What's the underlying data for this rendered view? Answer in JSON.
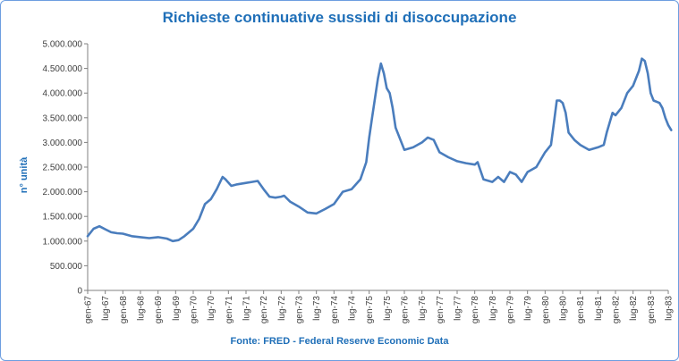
{
  "colors": {
    "line": "#4a7dbd",
    "title": "#1f6fb8",
    "axis": "#808080",
    "text": "#404040",
    "border": "#6d9ee0"
  },
  "chart_data": {
    "type": "line",
    "title": "Richieste continuative sussidi di disoccupazione",
    "ylabel": "n° unità",
    "xlabel": "",
    "source": "Fonte: FRED  - Federal Reserve Economic  Data",
    "ylim": [
      0,
      5000000
    ],
    "y_ticks": [
      "0",
      "500.000",
      "1.000.000",
      "1.500.000",
      "2.000.000",
      "2.500.000",
      "3.000.000",
      "3.500.000",
      "4.000.000",
      "4.500.000",
      "5.000.000"
    ],
    "x_ticks": [
      "gen-67",
      "lug-67",
      "gen-68",
      "lug-68",
      "gen-69",
      "lug-69",
      "gen-70",
      "lug-70",
      "gen-71",
      "lug-71",
      "gen-72",
      "lug-72",
      "gen-73",
      "lug-73",
      "gen-74",
      "lug-74",
      "gen-75",
      "lug-75",
      "gen-76",
      "lug-76",
      "gen-77",
      "lug-77",
      "gen-78",
      "lug-78",
      "gen-79",
      "lug-79",
      "gen-80",
      "lug-80",
      "gen-81",
      "lug-81",
      "gen-82",
      "lug-82",
      "gen-83",
      "lug-83"
    ],
    "grid": false,
    "legend": "none",
    "series": [
      {
        "points": [
          [
            "gen-67",
            1100000
          ],
          [
            "mar-67",
            1250000
          ],
          [
            "mag-67",
            1300000
          ],
          [
            "lug-67",
            1240000
          ],
          [
            "set-67",
            1180000
          ],
          [
            "nov-67",
            1160000
          ],
          [
            "gen-68",
            1150000
          ],
          [
            "apr-68",
            1100000
          ],
          [
            "lug-68",
            1080000
          ],
          [
            "ott-68",
            1060000
          ],
          [
            "gen-69",
            1080000
          ],
          [
            "apr-69",
            1050000
          ],
          [
            "giu-69",
            1000000
          ],
          [
            "ago-69",
            1020000
          ],
          [
            "ott-69",
            1100000
          ],
          [
            "gen-70",
            1250000
          ],
          [
            "mar-70",
            1450000
          ],
          [
            "mag-70",
            1750000
          ],
          [
            "lug-70",
            1850000
          ],
          [
            "set-70",
            2050000
          ],
          [
            "nov-70",
            2300000
          ],
          [
            "dic-70",
            2250000
          ],
          [
            "feb-71",
            2120000
          ],
          [
            "apr-71",
            2150000
          ],
          [
            "lug-71",
            2180000
          ],
          [
            "set-71",
            2200000
          ],
          [
            "nov-71",
            2220000
          ],
          [
            "gen-72",
            2050000
          ],
          [
            "mar-72",
            1900000
          ],
          [
            "mag-72",
            1880000
          ],
          [
            "lug-72",
            1900000
          ],
          [
            "ago-72",
            1920000
          ],
          [
            "ott-72",
            1800000
          ],
          [
            "gen-73",
            1700000
          ],
          [
            "apr-73",
            1580000
          ],
          [
            "lug-73",
            1560000
          ],
          [
            "ott-73",
            1650000
          ],
          [
            "gen-74",
            1750000
          ],
          [
            "apr-74",
            2000000
          ],
          [
            "lug-74",
            2050000
          ],
          [
            "ott-74",
            2250000
          ],
          [
            "dic-74",
            2600000
          ],
          [
            "gen-75",
            3100000
          ],
          [
            "feb-75",
            3500000
          ],
          [
            "mar-75",
            3900000
          ],
          [
            "apr-75",
            4300000
          ],
          [
            "mag-75",
            4600000
          ],
          [
            "giu-75",
            4400000
          ],
          [
            "lug-75",
            4100000
          ],
          [
            "ago-75",
            4000000
          ],
          [
            "set-75",
            3700000
          ],
          [
            "ott-75",
            3300000
          ],
          [
            "gen-76",
            2850000
          ],
          [
            "apr-76",
            2900000
          ],
          [
            "lug-76",
            3000000
          ],
          [
            "set-76",
            3100000
          ],
          [
            "nov-76",
            3050000
          ],
          [
            "gen-77",
            2800000
          ],
          [
            "apr-77",
            2700000
          ],
          [
            "lug-77",
            2620000
          ],
          [
            "ott-77",
            2580000
          ],
          [
            "gen-78",
            2550000
          ],
          [
            "feb-78",
            2600000
          ],
          [
            "apr-78",
            2250000
          ],
          [
            "lug-78",
            2200000
          ],
          [
            "set-78",
            2300000
          ],
          [
            "nov-78",
            2200000
          ],
          [
            "gen-79",
            2400000
          ],
          [
            "mar-79",
            2350000
          ],
          [
            "mag-79",
            2200000
          ],
          [
            "lug-79",
            2400000
          ],
          [
            "ott-79",
            2500000
          ],
          [
            "gen-80",
            2800000
          ],
          [
            "mar-80",
            2950000
          ],
          [
            "apr-80",
            3400000
          ],
          [
            "mag-80",
            3850000
          ],
          [
            "giu-80",
            3850000
          ],
          [
            "lug-80",
            3800000
          ],
          [
            "ago-80",
            3600000
          ],
          [
            "set-80",
            3200000
          ],
          [
            "nov-80",
            3050000
          ],
          [
            "gen-81",
            2950000
          ],
          [
            "apr-81",
            2850000
          ],
          [
            "lug-81",
            2900000
          ],
          [
            "set-81",
            2950000
          ],
          [
            "ott-81",
            3200000
          ],
          [
            "dic-81",
            3600000
          ],
          [
            "gen-82",
            3550000
          ],
          [
            "mar-82",
            3700000
          ],
          [
            "mag-82",
            4000000
          ],
          [
            "lug-82",
            4150000
          ],
          [
            "set-82",
            4450000
          ],
          [
            "ott-82",
            4700000
          ],
          [
            "nov-82",
            4650000
          ],
          [
            "dic-82",
            4400000
          ],
          [
            "gen-83",
            4000000
          ],
          [
            "feb-83",
            3850000
          ],
          [
            "apr-83",
            3800000
          ],
          [
            "mag-83",
            3700000
          ],
          [
            "giu-83",
            3500000
          ],
          [
            "lug-83",
            3350000
          ],
          [
            "ago-83",
            3250000
          ]
        ]
      }
    ]
  }
}
